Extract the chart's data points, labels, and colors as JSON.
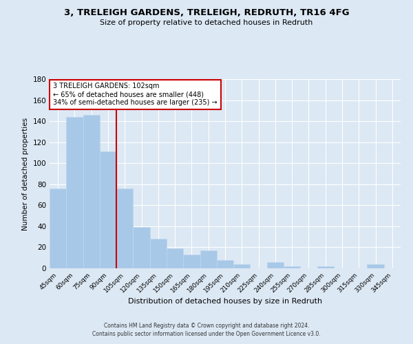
{
  "title_line1": "3, TRELEIGH GARDENS, TRELEIGH, REDRUTH, TR16 4FG",
  "title_line2": "Size of property relative to detached houses in Redruth",
  "xlabel": "Distribution of detached houses by size in Redruth",
  "ylabel": "Number of detached properties",
  "categories": [
    "45sqm",
    "60sqm",
    "75sqm",
    "90sqm",
    "105sqm",
    "120sqm",
    "135sqm",
    "150sqm",
    "165sqm",
    "180sqm",
    "195sqm",
    "210sqm",
    "225sqm",
    "240sqm",
    "255sqm",
    "270sqm",
    "285sqm",
    "300sqm",
    "315sqm",
    "330sqm",
    "345sqm"
  ],
  "values": [
    76,
    144,
    146,
    111,
    76,
    39,
    28,
    19,
    13,
    17,
    8,
    4,
    0,
    6,
    2,
    0,
    2,
    0,
    0,
    4,
    0
  ],
  "bar_color": "#a8c8e8",
  "bar_edge_color": "#c0d8ec",
  "highlight_line_color": "#cc0000",
  "annotation_title": "3 TRELEIGH GARDENS: 102sqm",
  "annotation_line1": "← 65% of detached houses are smaller (448)",
  "annotation_line2": "34% of semi-detached houses are larger (235) →",
  "annotation_box_color": "#ffffff",
  "annotation_box_edge": "#cc0000",
  "ylim": [
    0,
    180
  ],
  "yticks": [
    0,
    20,
    40,
    60,
    80,
    100,
    120,
    140,
    160,
    180
  ],
  "background_color": "#dce8f4",
  "footer_line1": "Contains HM Land Registry data © Crown copyright and database right 2024.",
  "footer_line2": "Contains public sector information licensed under the Open Government Licence v3.0."
}
